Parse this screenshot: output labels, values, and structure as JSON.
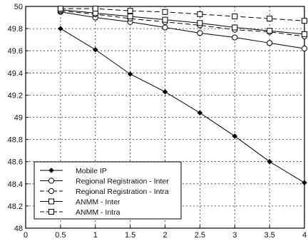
{
  "chart_data": {
    "type": "line",
    "title": "",
    "xlabel": "",
    "ylabel": "",
    "xlim": [
      0,
      4
    ],
    "ylim": [
      48,
      50
    ],
    "x_ticks": [
      "0",
      "0.5",
      "1",
      "1.5",
      "2",
      "2.5",
      "3",
      "3.5",
      "4"
    ],
    "y_ticks": [
      "48",
      "48.2",
      "48.4",
      "48.6",
      "48.8",
      "49",
      "49.2",
      "49.4",
      "49.6",
      "49.8",
      "50"
    ],
    "grid": true,
    "legend_position": "bottom-left",
    "x": [
      0.5,
      1,
      1.5,
      2,
      2.5,
      3,
      3.5,
      4
    ],
    "series": [
      {
        "name": "Mobile IP",
        "marker": "diamond-filled",
        "dash": "solid",
        "values": [
          49.8,
          49.61,
          49.39,
          49.23,
          49.04,
          48.83,
          48.6,
          48.41
        ]
      },
      {
        "name": "Regional Registration - Inter",
        "marker": "circle",
        "dash": "solid",
        "values": [
          49.95,
          49.9,
          49.86,
          49.81,
          49.76,
          49.72,
          49.67,
          49.62
        ]
      },
      {
        "name": "Regional Registration - Intra",
        "marker": "circle",
        "dash": "dashed",
        "values": [
          49.96,
          49.93,
          49.89,
          49.86,
          49.83,
          49.79,
          49.77,
          49.73
        ]
      },
      {
        "name": "ANMM - Inter",
        "marker": "square",
        "dash": "solid",
        "values": [
          49.97,
          49.94,
          49.91,
          49.88,
          49.85,
          49.81,
          49.78,
          49.75
        ]
      },
      {
        "name": "ANMM - Intra",
        "marker": "square",
        "dash": "dashed",
        "values": [
          49.98,
          49.98,
          49.96,
          49.95,
          49.93,
          49.91,
          49.89,
          49.87
        ]
      }
    ]
  }
}
